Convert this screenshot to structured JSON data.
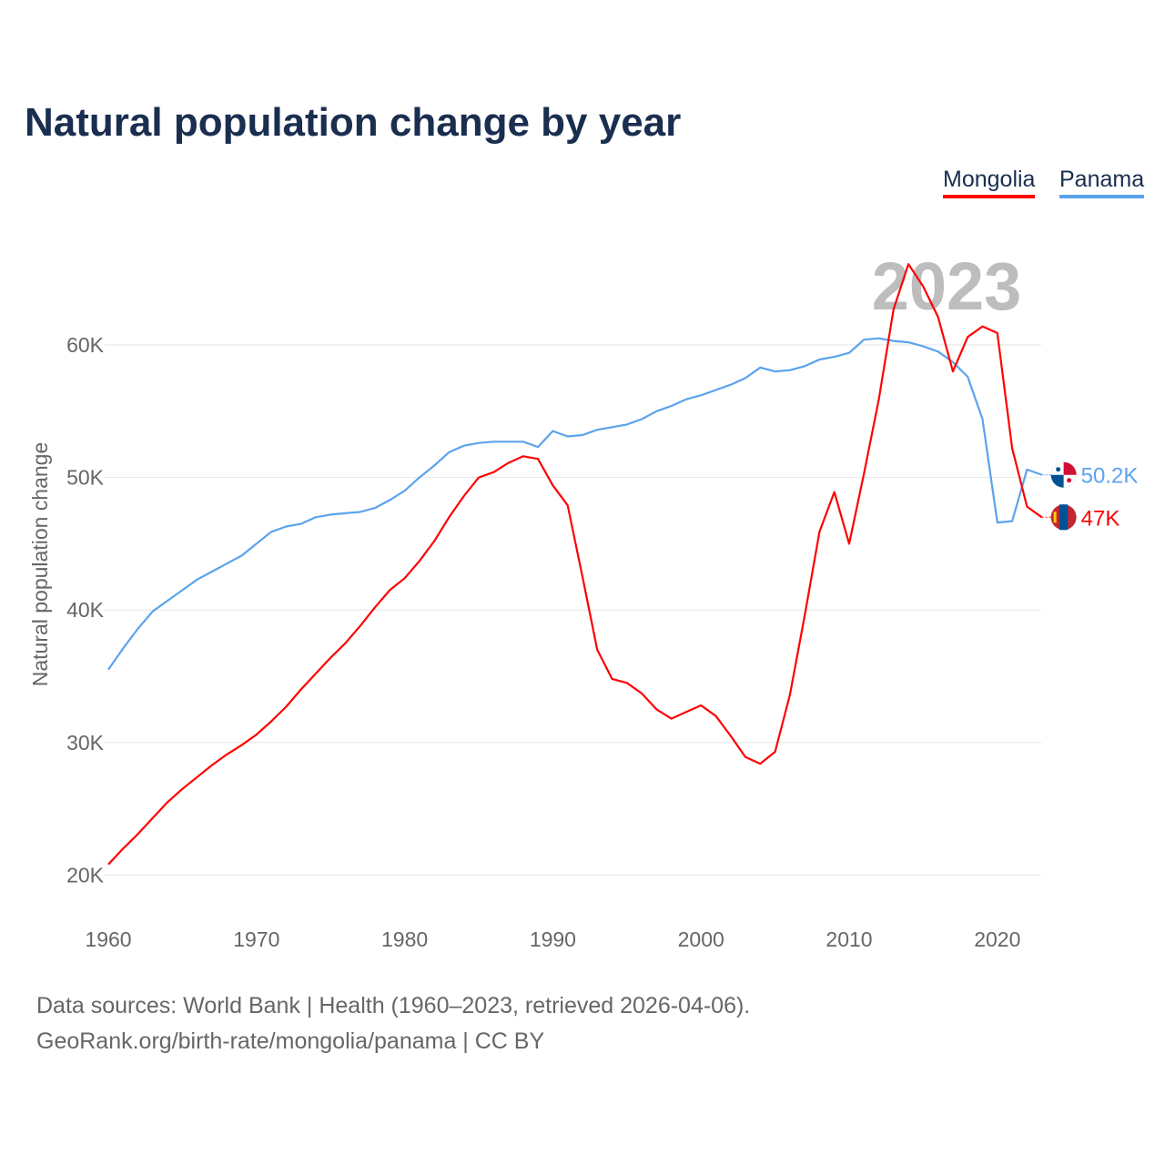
{
  "title": "Natural population change by year",
  "legend": [
    "Mongolia",
    "Panama"
  ],
  "year_label": "2023",
  "footer": {
    "line1": "Data sources: World Bank | Health (1960–2023, retrieved 2026-04-06).",
    "line2": "GeoRank.org/birth-rate/mongolia/panama | CC BY"
  },
  "chart_data": {
    "type": "line",
    "title": "Natural population change by year",
    "xlabel": "",
    "ylabel": "Natural population change",
    "xlim": [
      1960,
      2023
    ],
    "ylim": [
      20000,
      66000
    ],
    "x_ticks": [
      1960,
      1970,
      1980,
      1990,
      2000,
      2010,
      2020
    ],
    "x_tick_labels": [
      "1960",
      "1970",
      "1980",
      "1990",
      "2000",
      "2010",
      "2020"
    ],
    "y_ticks": [
      20000,
      30000,
      40000,
      50000,
      60000
    ],
    "y_tick_labels": [
      "20K",
      "30K",
      "40K",
      "50K",
      "60K"
    ],
    "grid": true,
    "legend_position": "top-right",
    "x_start": 1960,
    "series": [
      {
        "name": "Mongolia",
        "color": "#ff0000",
        "end_label": "47K",
        "values": [
          20800,
          22000,
          23100,
          24300,
          25500,
          26500,
          27400,
          28300,
          29100,
          29800,
          30600,
          31600,
          32700,
          34000,
          35200,
          36400,
          37500,
          38800,
          40200,
          41500,
          42400,
          43700,
          45200,
          47000,
          48600,
          50000,
          50400,
          51100,
          51600,
          51400,
          49400,
          47900,
          42500,
          37000,
          34800,
          34500,
          33700,
          32500,
          31800,
          32300,
          32800,
          32000,
          30500,
          28900,
          28400,
          29300,
          33600,
          39600,
          45900,
          48900,
          45000,
          50300,
          55900,
          62700,
          66100,
          64400,
          62100,
          58000,
          60600,
          61400,
          60900,
          52200,
          47800,
          47000
        ]
      },
      {
        "name": "Panama",
        "color": "#5ba3ec",
        "end_label": "50.2K",
        "values": [
          35500,
          37100,
          38600,
          39900,
          40700,
          41500,
          42300,
          42900,
          43500,
          44100,
          45000,
          45900,
          46300,
          46500,
          47000,
          47200,
          47300,
          47400,
          47700,
          48300,
          49000,
          50000,
          50900,
          51900,
          52400,
          52600,
          52700,
          52700,
          52700,
          52300,
          53500,
          53100,
          53200,
          53600,
          53800,
          54000,
          54400,
          55000,
          55400,
          55900,
          56200,
          56600,
          57000,
          57500,
          58300,
          58000,
          58100,
          58400,
          58900,
          59100,
          59400,
          60400,
          60500,
          60300,
          60200,
          59900,
          59500,
          58700,
          57600,
          54400,
          46600,
          46700,
          50600,
          50200
        ]
      }
    ]
  }
}
